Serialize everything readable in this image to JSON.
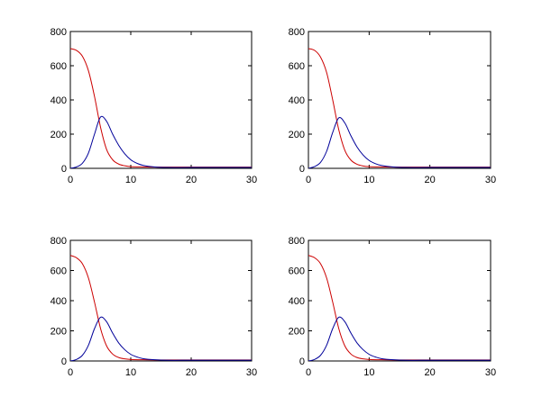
{
  "chart_data": [
    {
      "type": "line",
      "title": "",
      "xlabel": "",
      "ylabel": "",
      "xlim": [
        0,
        30
      ],
      "ylim": [
        0,
        800
      ],
      "xticks": [
        0,
        10,
        20,
        30
      ],
      "yticks": [
        0,
        200,
        400,
        600,
        800
      ],
      "grid": false,
      "series": [
        {
          "color": "#cc0000",
          "x": [
            0,
            1,
            2,
            3,
            4,
            5,
            6,
            7,
            8,
            9,
            10,
            12,
            14,
            16,
            20,
            25,
            30
          ],
          "y": [
            700,
            690,
            655,
            570,
            420,
            240,
            110,
            50,
            25,
            15,
            10,
            8,
            7,
            7,
            7,
            7,
            7
          ]
        },
        {
          "color": "#000099",
          "x": [
            0,
            1,
            2,
            3,
            4,
            5,
            6,
            7,
            8,
            9,
            10,
            11,
            12,
            14,
            16,
            20,
            25,
            30
          ],
          "y": [
            0,
            8,
            30,
            90,
            200,
            300,
            275,
            200,
            135,
            85,
            50,
            30,
            18,
            8,
            5,
            5,
            5,
            5
          ]
        }
      ]
    },
    {
      "type": "line",
      "title": "",
      "xlabel": "",
      "ylabel": "",
      "xlim": [
        0,
        30
      ],
      "ylim": [
        0,
        800
      ],
      "xticks": [
        0,
        10,
        20,
        30
      ],
      "yticks": [
        0,
        200,
        400,
        600,
        800
      ],
      "grid": false,
      "series": [
        {
          "color": "#cc0000",
          "x": [
            0,
            1,
            2,
            3,
            4,
            5,
            6,
            7,
            8,
            9,
            10,
            12,
            14,
            16,
            20,
            25,
            30
          ],
          "y": [
            700,
            690,
            650,
            560,
            400,
            225,
            105,
            48,
            24,
            14,
            10,
            8,
            7,
            7,
            7,
            7,
            7
          ]
        },
        {
          "color": "#000099",
          "x": [
            0,
            1,
            2,
            3,
            4,
            5,
            6,
            7,
            8,
            9,
            10,
            11,
            12,
            14,
            16,
            20,
            25,
            30
          ],
          "y": [
            0,
            10,
            35,
            100,
            210,
            295,
            265,
            190,
            125,
            78,
            46,
            28,
            17,
            8,
            5,
            5,
            5,
            5
          ]
        }
      ]
    },
    {
      "type": "line",
      "title": "",
      "xlabel": "",
      "ylabel": "",
      "xlim": [
        0,
        30
      ],
      "ylim": [
        0,
        800
      ],
      "xticks": [
        0,
        10,
        20,
        30
      ],
      "yticks": [
        0,
        200,
        400,
        600,
        800
      ],
      "grid": false,
      "series": [
        {
          "color": "#cc0000",
          "x": [
            0,
            1,
            2,
            3,
            4,
            5,
            6,
            7,
            8,
            9,
            10,
            12,
            14,
            16,
            20,
            25,
            30
          ],
          "y": [
            700,
            685,
            645,
            550,
            390,
            215,
            100,
            46,
            23,
            14,
            10,
            8,
            7,
            7,
            7,
            7,
            7
          ]
        },
        {
          "color": "#000099",
          "x": [
            0,
            1,
            2,
            3,
            4,
            5,
            6,
            7,
            8,
            9,
            10,
            11,
            12,
            14,
            16,
            20,
            25,
            30
          ],
          "y": [
            0,
            10,
            38,
            105,
            215,
            290,
            260,
            185,
            120,
            75,
            44,
            27,
            16,
            8,
            5,
            5,
            5,
            5
          ]
        }
      ]
    },
    {
      "type": "line",
      "title": "",
      "xlabel": "",
      "ylabel": "",
      "xlim": [
        0,
        30
      ],
      "ylim": [
        0,
        800
      ],
      "xticks": [
        0,
        10,
        20,
        30
      ],
      "yticks": [
        0,
        200,
        400,
        600,
        800
      ],
      "grid": false,
      "series": [
        {
          "color": "#cc0000",
          "x": [
            0,
            1,
            2,
            3,
            4,
            5,
            6,
            7,
            8,
            9,
            10,
            12,
            14,
            16,
            20,
            25,
            30
          ],
          "y": [
            700,
            685,
            645,
            550,
            390,
            215,
            100,
            46,
            23,
            14,
            10,
            8,
            7,
            7,
            7,
            7,
            7
          ]
        },
        {
          "color": "#000099",
          "x": [
            0,
            1,
            2,
            3,
            4,
            5,
            6,
            7,
            8,
            9,
            10,
            11,
            12,
            14,
            16,
            20,
            25,
            30
          ],
          "y": [
            0,
            10,
            38,
            105,
            215,
            290,
            260,
            185,
            120,
            75,
            44,
            27,
            16,
            8,
            5,
            5,
            5,
            5
          ]
        }
      ]
    }
  ]
}
